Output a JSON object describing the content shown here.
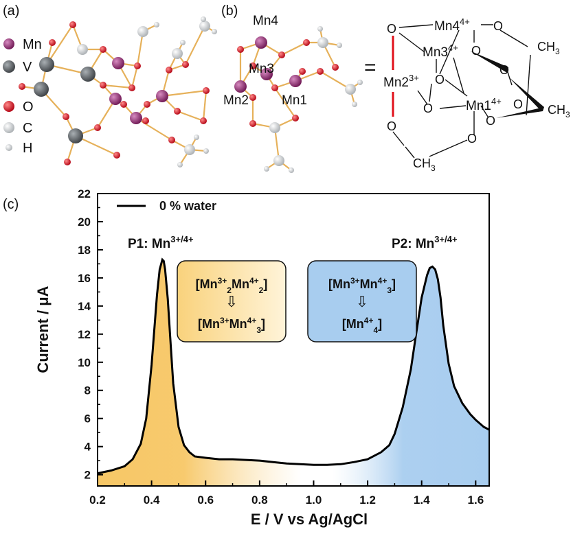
{
  "panels": {
    "a": "(a)",
    "b": "(b)",
    "c": "(c)"
  },
  "legend_a": {
    "items": [
      {
        "label": "Mn",
        "color": "#8e2a6c"
      },
      {
        "label": "V",
        "color": "#5f6468"
      },
      {
        "label": "O",
        "color": "#e0101a"
      },
      {
        "label": "C",
        "color": "#d9dde0"
      },
      {
        "label": "H",
        "color": "#c9ced2"
      }
    ]
  },
  "structure_b": {
    "labels": [
      "Mn4",
      "Mn3",
      "Mn2",
      "Mn1"
    ],
    "equals": "="
  },
  "schematic": {
    "mn4": {
      "base": "Mn4",
      "sup": "4+"
    },
    "mn3": {
      "base": "Mn3",
      "sup": "4+"
    },
    "mn2": {
      "base": "Mn2",
      "sup": "3+"
    },
    "mn1": {
      "base": "Mn1",
      "sup": "4+"
    },
    "o": "O",
    "ch3": {
      "base": "CH",
      "sub": "3"
    }
  },
  "chart_data": {
    "type": "line",
    "xlabel": "E / V vs Ag/AgCl",
    "ylabel": "Current / μA",
    "xlim": [
      0.2,
      1.65
    ],
    "ylim": [
      1.2,
      22
    ],
    "xticks": [
      0.2,
      0.4,
      0.6,
      0.8,
      1.0,
      1.2,
      1.4,
      1.6
    ],
    "yticks": [
      2,
      4,
      6,
      8,
      10,
      12,
      14,
      16,
      18,
      20,
      22
    ],
    "xtick_labels": [
      "0.2",
      "0.4",
      "0.6",
      "0.8",
      "1.0",
      "1.2",
      "1.4",
      "1.6"
    ],
    "ytick_labels": [
      "2",
      "4",
      "6",
      "8",
      "10",
      "12",
      "14",
      "16",
      "18",
      "20",
      "22"
    ],
    "legend": {
      "label": "0 % water",
      "placement": "top-left"
    },
    "series": [
      {
        "name": "0 % water",
        "color": "#000000",
        "x": [
          0.2,
          0.25,
          0.3,
          0.33,
          0.36,
          0.38,
          0.4,
          0.42,
          0.43,
          0.44,
          0.445,
          0.45,
          0.46,
          0.47,
          0.48,
          0.5,
          0.52,
          0.54,
          0.56,
          0.6,
          0.65,
          0.7,
          0.75,
          0.8,
          0.85,
          0.9,
          0.95,
          1.0,
          1.05,
          1.1,
          1.15,
          1.2,
          1.25,
          1.28,
          1.3,
          1.33,
          1.36,
          1.38,
          1.4,
          1.42,
          1.43,
          1.44,
          1.45,
          1.46,
          1.47,
          1.48,
          1.5,
          1.52,
          1.55,
          1.58,
          1.6,
          1.63,
          1.65
        ],
        "y": [
          2.1,
          2.3,
          2.6,
          3.1,
          4.2,
          6.0,
          9.8,
          14.8,
          16.6,
          17.3,
          17.2,
          16.6,
          14.5,
          11.5,
          8.5,
          5.4,
          4.1,
          3.6,
          3.3,
          3.2,
          3.1,
          3.1,
          3.05,
          3.0,
          2.9,
          2.8,
          2.75,
          2.7,
          2.7,
          2.75,
          2.9,
          3.1,
          3.6,
          4.1,
          4.9,
          6.8,
          9.5,
          12.1,
          14.6,
          16.2,
          16.7,
          16.8,
          16.6,
          15.9,
          14.6,
          12.6,
          9.9,
          8.3,
          7.1,
          6.3,
          5.9,
          5.4,
          5.2
        ]
      }
    ],
    "peak_labels": [
      {
        "id": "P1",
        "text": "P1: Mn",
        "sup": "3+/4+",
        "x": 0.445
      },
      {
        "id": "P2",
        "text": "P2: Mn",
        "sup": "3+/4+",
        "x": 1.445
      }
    ],
    "shading": {
      "left_color": "#f7c766",
      "right_color": "#a8cdef"
    },
    "annotations": {
      "box1": {
        "color": "#fde9b5",
        "top": [
          {
            "t": "[Mn"
          },
          {
            "t": "3+",
            "s": "sup"
          },
          {
            "t": "2",
            "s": "sub"
          },
          {
            "t": "Mn"
          },
          {
            "t": "4+",
            "s": "sup"
          },
          {
            "t": "2",
            "s": "sub"
          },
          {
            "t": "]"
          }
        ],
        "bottom": [
          {
            "t": "[Mn"
          },
          {
            "t": "3+",
            "s": "sup"
          },
          {
            "t": "Mn"
          },
          {
            "t": "4+",
            "s": "sup"
          },
          {
            "t": "3",
            "s": "sub"
          },
          {
            "t": "]"
          }
        ]
      },
      "box2": {
        "color": "#a8cdef",
        "top": [
          {
            "t": "[Mn"
          },
          {
            "t": "3+",
            "s": "sup"
          },
          {
            "t": "Mn"
          },
          {
            "t": "4+",
            "s": "sup"
          },
          {
            "t": "3",
            "s": "sub"
          },
          {
            "t": "]"
          }
        ],
        "bottom": [
          {
            "t": "[Mn"
          },
          {
            "t": "4+",
            "s": "sup"
          },
          {
            "t": "4",
            "s": "sub"
          },
          {
            "t": "]"
          }
        ]
      }
    }
  }
}
